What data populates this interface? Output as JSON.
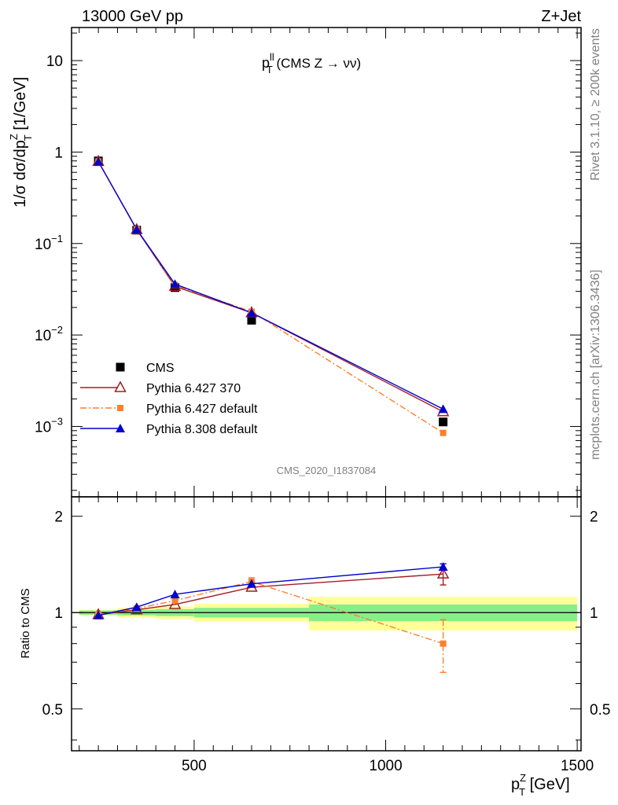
{
  "header": {
    "left": "13000 GeV pp",
    "right": "Z+Jet"
  },
  "side": {
    "top": "Rivet 3.1.10, ≥ 200k events",
    "bottom": "mcplots.cern.ch [arXiv:1306.3436]"
  },
  "chart_data": {
    "type": "line",
    "title": {
      "main": "p",
      "sup": "ll",
      "sub": "T",
      "rest": " (CMS Z → νν)"
    },
    "ylabel": {
      "p1": "1/σ dσ/dp",
      "sup": "Z",
      "sub": "T",
      "p2": " [1/GeV]"
    },
    "xlabel": {
      "main": "p",
      "sup": "Z",
      "sub": "T",
      "rest": " [GeV]"
    },
    "watermark": "CMS_2020_I1837084",
    "ratio_ylabel": "Ratio to CMS",
    "xlim": [
      180,
      1510
    ],
    "ylim_log": [
      0.00017,
      23
    ],
    "ratio_ylim": [
      0.37,
      2.3
    ],
    "x_ticks": [
      500,
      1000,
      1500
    ],
    "y_ticks": [
      {
        "v": 10,
        "base": "10",
        "exp": ""
      },
      {
        "v": 1,
        "base": "1",
        "exp": ""
      },
      {
        "v": 0.1,
        "base": "10",
        "exp": "−1"
      },
      {
        "v": 0.01,
        "base": "10",
        "exp": "−2"
      },
      {
        "v": 0.001,
        "base": "10",
        "exp": "−3"
      }
    ],
    "ratio_ticks": [
      0.5,
      1,
      2
    ],
    "x": [
      250,
      350,
      450,
      650,
      1150
    ],
    "bins": [
      [
        200,
        300
      ],
      [
        300,
        400
      ],
      [
        400,
        500
      ],
      [
        500,
        800
      ],
      [
        800,
        1500
      ]
    ],
    "legend": {
      "position": "bottom-left"
    },
    "series": [
      {
        "name": "CMS",
        "color": "#000000",
        "marker": "square",
        "values": [
          0.8,
          0.14,
          0.033,
          0.0145,
          0.00112
        ],
        "ratio": [
          1,
          1,
          1,
          1,
          1
        ],
        "band_inner": [
          0.015,
          0.02,
          0.025,
          0.035,
          0.06
        ],
        "band_outer": [
          0.02,
          0.035,
          0.045,
          0.065,
          0.12
        ]
      },
      {
        "name": "Pythia 6.427 370",
        "color": "#a31d25",
        "marker": "open-triangle",
        "line": "solid",
        "values": [
          0.79,
          0.142,
          0.034,
          0.0175,
          0.00145
        ],
        "ratio": [
          0.985,
          1.02,
          1.06,
          1.2,
          1.32
        ],
        "ratio_err": [
          0,
          0,
          0,
          0,
          0.1
        ]
      },
      {
        "name": "Pythia 6.427 default",
        "color": "#ff7f2a",
        "marker": "filled-square",
        "line": "dashdot",
        "values": [
          0.79,
          0.143,
          0.035,
          0.018,
          0.00085
        ],
        "ratio": [
          0.985,
          1.03,
          1.09,
          1.25,
          0.8
        ],
        "ratio_err": [
          0,
          0,
          0,
          0.035,
          0.15
        ]
      },
      {
        "name": "Pythia 8.308 default",
        "color": "#0000cc",
        "marker": "filled-triangle",
        "line": "solid",
        "values": [
          0.785,
          0.143,
          0.036,
          0.0175,
          0.00155
        ],
        "ratio": [
          0.98,
          1.04,
          1.14,
          1.23,
          1.39
        ],
        "ratio_err": [
          0,
          0,
          0,
          0,
          0.03
        ]
      }
    ]
  }
}
